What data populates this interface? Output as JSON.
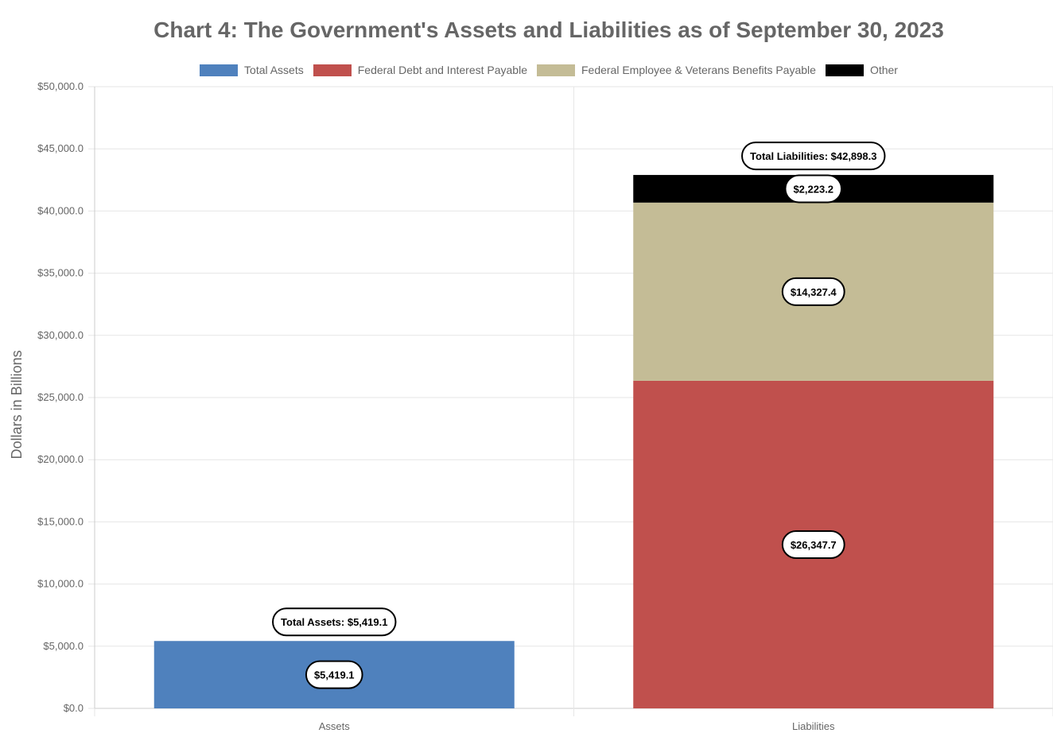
{
  "chart_data": {
    "type": "bar",
    "stacked": true,
    "title": "Chart 4: The Government's Assets and Liabilities as of September 30, 2023",
    "ylabel": "Dollars in Billions",
    "xlabel": "",
    "categories": [
      "Assets",
      "Liabilities"
    ],
    "ylim": [
      0,
      50000
    ],
    "y_ticks": [
      0,
      5000,
      10000,
      15000,
      20000,
      25000,
      30000,
      35000,
      40000,
      45000,
      50000
    ],
    "y_tick_labels": [
      "$0.0",
      "$5,000.0",
      "$10,000.0",
      "$15,000.0",
      "$20,000.0",
      "$25,000.0",
      "$30,000.0",
      "$35,000.0",
      "$40,000.0",
      "$45,000.0",
      "$50,000.0"
    ],
    "grid": true,
    "legend_position": "top",
    "series": [
      {
        "name": "Total Assets",
        "color": "#4f81bd",
        "values": [
          5419.1,
          0
        ],
        "labels": [
          "$5,419.1",
          ""
        ]
      },
      {
        "name": "Federal Debt and Interest Payable",
        "color": "#c0504d",
        "values": [
          0,
          26347.7
        ],
        "labels": [
          "",
          "$26,347.7"
        ]
      },
      {
        "name": "Federal Employee & Veterans Benefits Payable",
        "color": "#c4bc96",
        "values": [
          0,
          14327.4
        ],
        "labels": [
          "",
          "$14,327.4"
        ]
      },
      {
        "name": "Other",
        "color": "#000000",
        "values": [
          0,
          2223.2
        ],
        "labels": [
          "",
          "$2,223.2"
        ]
      }
    ],
    "totals": [
      {
        "category": "Assets",
        "value": 5419.1,
        "label": "Total Assets: $5,419.1"
      },
      {
        "category": "Liabilities",
        "value": 42898.3,
        "label": "Total Liabilities: $42,898.3"
      }
    ]
  }
}
